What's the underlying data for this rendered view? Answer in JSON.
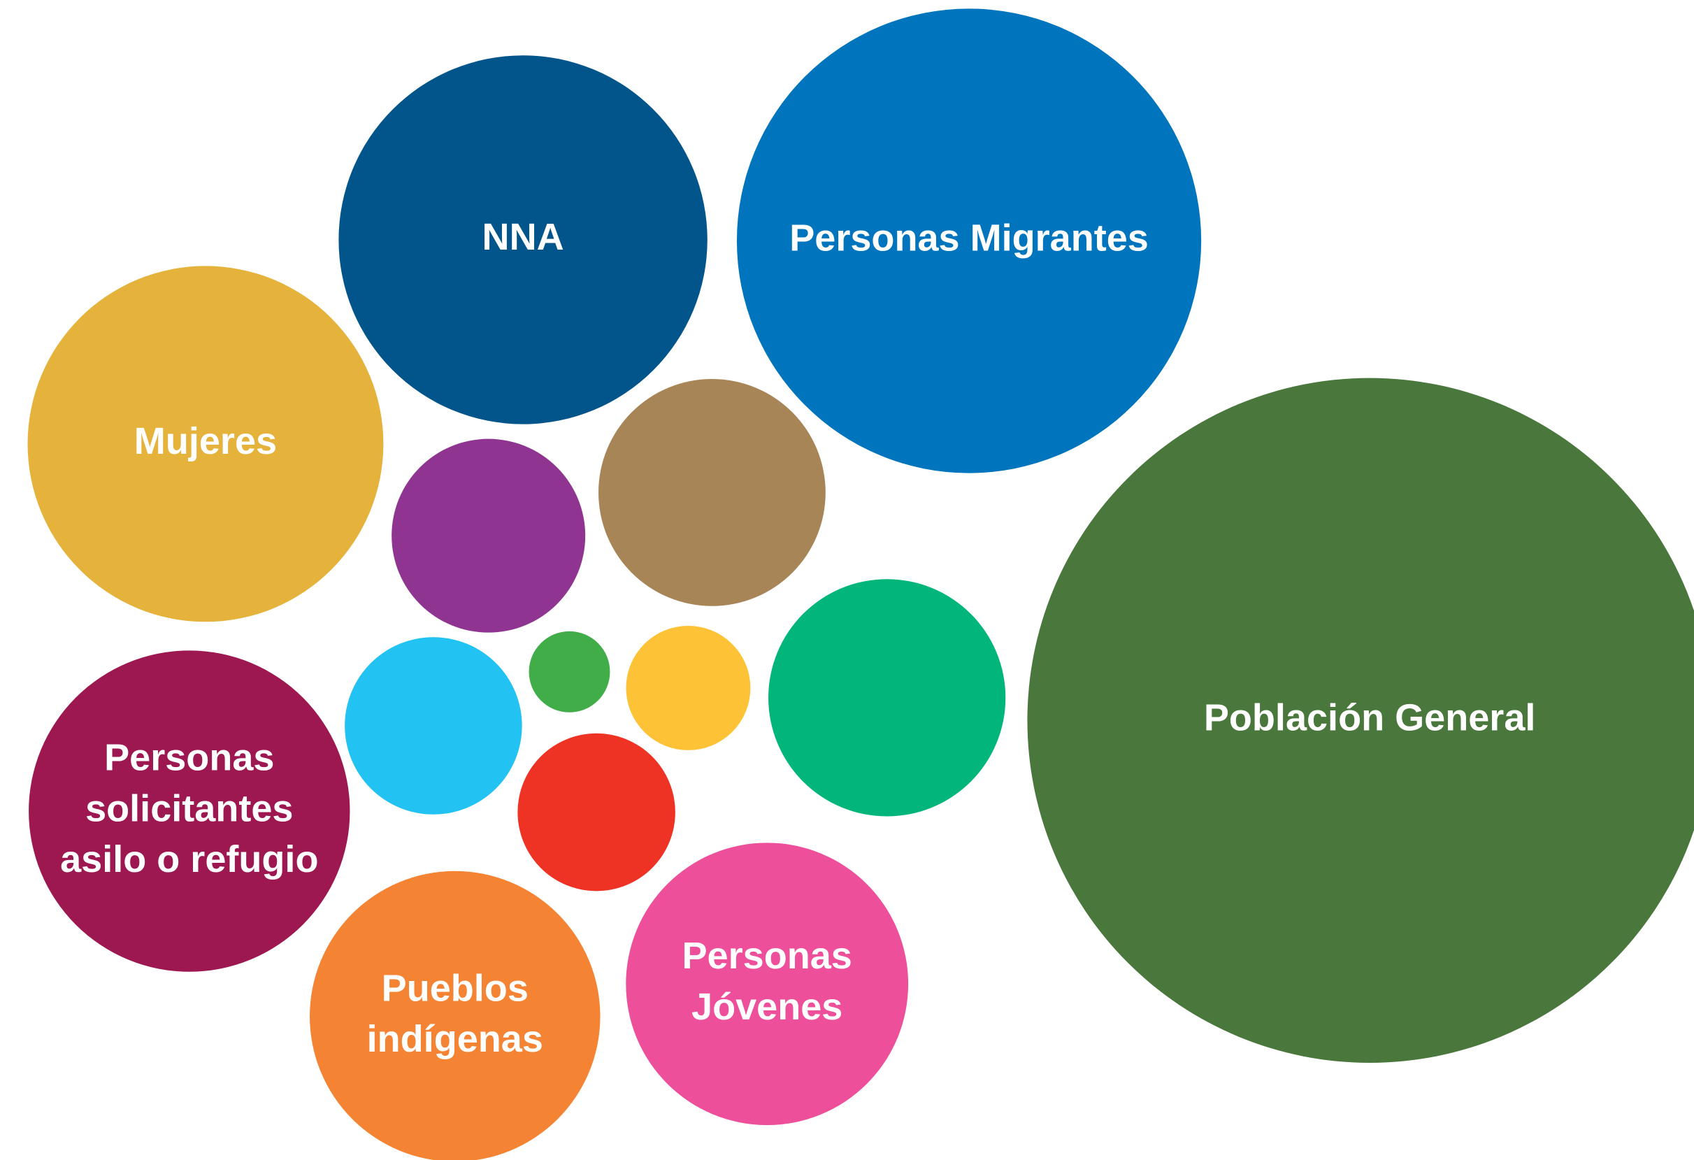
{
  "chart_data": {
    "type": "packed_bubble",
    "categories": [
      [
        "Población General"
      ],
      [
        "Personas Migrantes"
      ],
      [
        "NNA"
      ],
      [
        "Mujeres"
      ],
      [
        "Personas",
        "solicitantes",
        "asilo o refugio"
      ],
      [
        "Pueblos",
        "indígenas"
      ],
      [
        "Personas",
        "Jóvenes"
      ],
      null,
      null,
      null,
      null,
      null,
      null,
      null
    ],
    "values": [
      100,
      46,
      29,
      27,
      22,
      18,
      17,
      12,
      11,
      8,
      6.7,
      5.3,
      3.3,
      1.4
    ],
    "colors": [
      "#4a773c",
      "#0075be",
      "#01558b",
      "#e5b23b",
      "#9d1750",
      "#f48433",
      "#ee4f9b",
      "#02b57b",
      "#a88556",
      "#8f3591",
      "#22c3f2",
      "#ee3224",
      "#fec236",
      "#40ad49"
    ]
  }
}
